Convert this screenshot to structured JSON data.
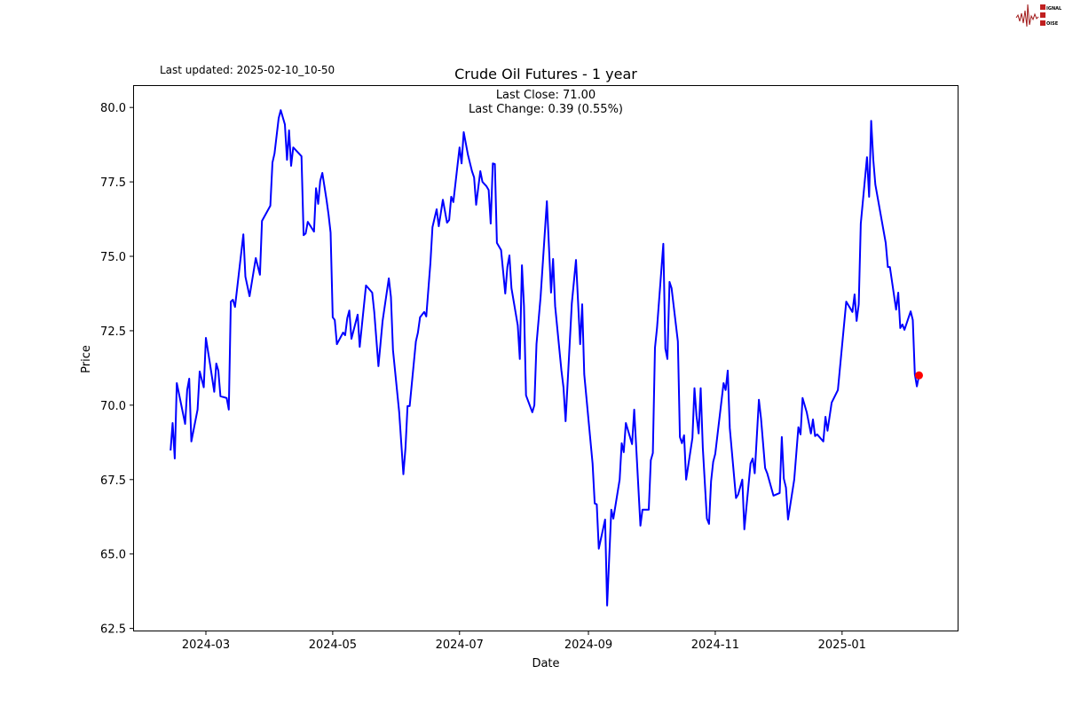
{
  "header": {
    "last_updated": "Last updated: 2025-02-10_10-50",
    "logo_text": "SIGNAL 2 NOISE"
  },
  "chart_data": {
    "type": "line",
    "title": "Crude Oil Futures - 1 year",
    "annotations": [
      "Last Close: 71.00",
      "Last Change: 0.39 (0.55%)"
    ],
    "xlabel": "Date",
    "ylabel": "Price",
    "xlim": [
      "2024-01-26",
      "2025-02-26"
    ],
    "ylim": [
      62.4,
      80.75
    ],
    "x_ticks": [
      "2024-03",
      "2024-05",
      "2024-07",
      "2024-09",
      "2024-11",
      "2025-01"
    ],
    "y_ticks": [
      "62.5",
      "65.0",
      "67.5",
      "70.0",
      "72.5",
      "75.0",
      "77.5",
      "80.0"
    ],
    "grid": false,
    "line_color": "#0000ff",
    "last_point_color": "#ff0000",
    "last_point": {
      "x": "2025-02-07",
      "y": 71.0
    },
    "series": [
      {
        "x": [
          "2024-02-13",
          "2024-02-14",
          "2024-02-15",
          "2024-02-16",
          "2024-02-20",
          "2024-02-21",
          "2024-02-22",
          "2024-02-23",
          "2024-02-26",
          "2024-02-27",
          "2024-02-29",
          "2024-03-01",
          "2024-03-03",
          "2024-03-05",
          "2024-03-06",
          "2024-03-07",
          "2024-03-08",
          "2024-03-11",
          "2024-03-12",
          "2024-03-13",
          "2024-03-14",
          "2024-03-15",
          "2024-03-19",
          "2024-03-20",
          "2024-03-22",
          "2024-03-25",
          "2024-03-27",
          "2024-03-28",
          "2024-04-01",
          "2024-04-02",
          "2024-04-03",
          "2024-04-05",
          "2024-04-06",
          "2024-04-08",
          "2024-04-09",
          "2024-04-10",
          "2024-04-11",
          "2024-04-12",
          "2024-04-16",
          "2024-04-17",
          "2024-04-18",
          "2024-04-19",
          "2024-04-22",
          "2024-04-23",
          "2024-04-24",
          "2024-04-25",
          "2024-04-26",
          "2024-04-28",
          "2024-04-29",
          "2024-04-30",
          "2024-05-01",
          "2024-05-02",
          "2024-05-03",
          "2024-05-06",
          "2024-05-07",
          "2024-05-08",
          "2024-05-09",
          "2024-05-10",
          "2024-05-13",
          "2024-05-14",
          "2024-05-17",
          "2024-05-20",
          "2024-05-21",
          "2024-05-23",
          "2024-05-25",
          "2024-05-28",
          "2024-05-29",
          "2024-05-30",
          "2024-06-02",
          "2024-06-04",
          "2024-06-05",
          "2024-06-06",
          "2024-06-07",
          "2024-06-10",
          "2024-06-11",
          "2024-06-12",
          "2024-06-14",
          "2024-06-15",
          "2024-06-17",
          "2024-06-18",
          "2024-06-20",
          "2024-06-21",
          "2024-06-23",
          "2024-06-25",
          "2024-06-26",
          "2024-06-27",
          "2024-06-28",
          "2024-07-01",
          "2024-07-02",
          "2024-07-03",
          "2024-07-05",
          "2024-07-07",
          "2024-07-08",
          "2024-07-09",
          "2024-07-11",
          "2024-07-12",
          "2024-07-14",
          "2024-07-15",
          "2024-07-16",
          "2024-07-17",
          "2024-07-18",
          "2024-07-19",
          "2024-07-21",
          "2024-07-23",
          "2024-07-24",
          "2024-07-25",
          "2024-07-26",
          "2024-07-29",
          "2024-07-30",
          "2024-07-31",
          "2024-08-01",
          "2024-08-02",
          "2024-08-05",
          "2024-08-06",
          "2024-08-07",
          "2024-08-09",
          "2024-08-12",
          "2024-08-14",
          "2024-08-15",
          "2024-08-16",
          "2024-08-19",
          "2024-08-20",
          "2024-08-21",
          "2024-08-24",
          "2024-08-26",
          "2024-08-28",
          "2024-08-29",
          "2024-08-30",
          "2024-09-03",
          "2024-09-04",
          "2024-09-05",
          "2024-09-06",
          "2024-09-09",
          "2024-09-10",
          "2024-09-12",
          "2024-09-13",
          "2024-09-16",
          "2024-09-17",
          "2024-09-18",
          "2024-09-19",
          "2024-09-22",
          "2024-09-23",
          "2024-09-26",
          "2024-09-27",
          "2024-09-30",
          "2024-10-01",
          "2024-10-02",
          "2024-10-03",
          "2024-10-04",
          "2024-10-07",
          "2024-10-08",
          "2024-10-09",
          "2024-10-10",
          "2024-10-11",
          "2024-10-14",
          "2024-10-15",
          "2024-10-16",
          "2024-10-17",
          "2024-10-18",
          "2024-10-21",
          "2024-10-22",
          "2024-10-23",
          "2024-10-24",
          "2024-10-25",
          "2024-10-26",
          "2024-10-28",
          "2024-10-29",
          "2024-10-30",
          "2024-10-31",
          "2024-11-01",
          "2024-11-05",
          "2024-11-06",
          "2024-11-07",
          "2024-11-08",
          "2024-11-11",
          "2024-11-12",
          "2024-11-14",
          "2024-11-15",
          "2024-11-18",
          "2024-11-19",
          "2024-11-20",
          "2024-11-22",
          "2024-11-23",
          "2024-11-25",
          "2024-11-26",
          "2024-11-29",
          "2024-12-02",
          "2024-12-03",
          "2024-12-04",
          "2024-12-05",
          "2024-12-06",
          "2024-12-09",
          "2024-12-11",
          "2024-12-12",
          "2024-12-13",
          "2024-12-15",
          "2024-12-17",
          "2024-12-18",
          "2024-12-19",
          "2024-12-20",
          "2024-12-23",
          "2024-12-24",
          "2024-12-25",
          "2024-12-27",
          "2024-12-30",
          "2025-01-03",
          "2025-01-06",
          "2025-01-07",
          "2025-01-08",
          "2025-01-09",
          "2025-01-10",
          "2025-01-13",
          "2025-01-14",
          "2025-01-15",
          "2025-01-16",
          "2025-01-17",
          "2025-01-22",
          "2025-01-23",
          "2025-01-24",
          "2025-01-27",
          "2025-01-28",
          "2025-01-29",
          "2025-01-30",
          "2025-01-31",
          "2025-02-03",
          "2025-02-04",
          "2025-02-05",
          "2025-02-06",
          "2025-02-07"
        ],
        "y": [
          68.48,
          69.4,
          68.21,
          70.74,
          69.37,
          70.51,
          70.89,
          68.78,
          69.85,
          71.13,
          70.6,
          72.26,
          71.37,
          70.45,
          71.4,
          71.16,
          70.3,
          70.24,
          69.85,
          73.48,
          73.54,
          73.3,
          75.74,
          74.32,
          73.66,
          74.94,
          74.38,
          76.19,
          76.7,
          78.15,
          78.45,
          79.64,
          79.91,
          79.43,
          78.24,
          79.23,
          78.04,
          78.66,
          78.36,
          75.71,
          75.77,
          76.16,
          75.83,
          77.29,
          76.76,
          77.53,
          77.8,
          76.9,
          76.4,
          75.8,
          72.95,
          72.86,
          72.05,
          72.44,
          72.35,
          72.92,
          73.18,
          72.23,
          73.04,
          71.96,
          74.02,
          73.78,
          73.13,
          71.31,
          72.83,
          74.26,
          73.63,
          71.85,
          69.76,
          67.68,
          68.57,
          69.97,
          69.97,
          72.14,
          72.44,
          72.95,
          73.13,
          72.98,
          74.79,
          75.98,
          76.58,
          76.01,
          76.9,
          76.13,
          76.22,
          77.0,
          76.82,
          78.66,
          78.12,
          79.17,
          78.42,
          77.86,
          77.65,
          76.73,
          77.86,
          77.5,
          77.35,
          77.23,
          76.1,
          78.12,
          78.1,
          75.45,
          75.21,
          73.75,
          74.64,
          75.03,
          73.93,
          72.68,
          71.55,
          74.7,
          73.33,
          70.33,
          69.76,
          70.0,
          72.05,
          73.63,
          76.85,
          73.78,
          74.91,
          73.33,
          71.16,
          70.6,
          69.46,
          73.42,
          74.88,
          72.05,
          73.39,
          71.04,
          68.04,
          66.7,
          66.67,
          65.18,
          66.16,
          63.27,
          66.49,
          66.19,
          67.5,
          68.72,
          68.42,
          69.4,
          68.69,
          69.85,
          65.95,
          66.49,
          66.49,
          68.15,
          68.39,
          71.93,
          72.59,
          75.42,
          71.9,
          71.55,
          74.14,
          73.93,
          72.14,
          68.93,
          68.72,
          68.99,
          67.5,
          68.9,
          70.57,
          69.64,
          69.05,
          70.57,
          68.57,
          66.19,
          66.01,
          67.44,
          68.1,
          68.36,
          70.74,
          70.51,
          71.16,
          69.23,
          66.88,
          67.0,
          67.5,
          65.83,
          68.04,
          68.21,
          67.71,
          70.18,
          69.55,
          67.89,
          67.71,
          66.96,
          67.05,
          68.93,
          67.53,
          67.23,
          66.16,
          67.5,
          69.26,
          69.02,
          70.24,
          69.76,
          69.05,
          69.52,
          68.96,
          69.02,
          68.78,
          69.61,
          69.14,
          70.09,
          70.51,
          73.48,
          73.13,
          73.72,
          72.83,
          73.39,
          76.1,
          78.33,
          77.0,
          79.55,
          78.24,
          77.41,
          75.45,
          74.64,
          74.64,
          73.21,
          73.78,
          72.59,
          72.71,
          72.53,
          73.15,
          72.86,
          71.04,
          70.63,
          71.0
        ]
      }
    ]
  }
}
